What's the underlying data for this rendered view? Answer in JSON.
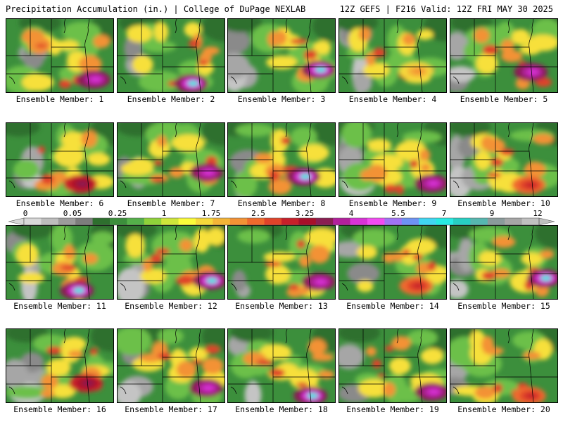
{
  "header": {
    "left": "Precipitation Accumulation (in.) | College of DuPage NEXLAB",
    "right": "12Z GEFS | F216 Valid: 12Z FRI MAY 30 2025"
  },
  "legend": {
    "ticks": [
      "0",
      "0.05",
      "0.25",
      "1",
      "1.75",
      "2.5",
      "3.25",
      "4",
      "5.5",
      "7",
      "9",
      "12"
    ],
    "colors": [
      "#d8d8d8",
      "#bdbdbd",
      "#9c9c9c",
      "#7d7d7d",
      "#2e6f2e",
      "#3c8f3c",
      "#55b04a",
      "#8fd23a",
      "#cfe63a",
      "#fbfb3a",
      "#f6d83a",
      "#f4b437",
      "#f39235",
      "#ef6a2d",
      "#e0432a",
      "#c7202a",
      "#a8102a",
      "#8a1e52",
      "#b2209c",
      "#d833d6",
      "#f24bf2",
      "#a073f4",
      "#6e92f4",
      "#40d6f2",
      "#27eae3",
      "#27cfc2",
      "#56b7b0",
      "#8a9b9b",
      "#a6a6a6",
      "#c0c0c0"
    ]
  },
  "members": [
    {
      "label": "Ensemble Member: 1",
      "peak": "magenta"
    },
    {
      "label": "Ensemble Member: 2",
      "peak": "cyan"
    },
    {
      "label": "Ensemble Member: 3",
      "peak": "cyan"
    },
    {
      "label": "Ensemble Member: 4",
      "peak": "orange"
    },
    {
      "label": "Ensemble Member: 5",
      "peak": "magenta"
    },
    {
      "label": "Ensemble Member: 6",
      "peak": "darkred"
    },
    {
      "label": "Ensemble Member: 7",
      "peak": "magenta"
    },
    {
      "label": "Ensemble Member: 8",
      "peak": "cyan"
    },
    {
      "label": "Ensemble Member: 9",
      "peak": "magenta"
    },
    {
      "label": "Ensemble Member: 10",
      "peak": "red"
    },
    {
      "label": "Ensemble Member: 11",
      "peak": "cyan"
    },
    {
      "label": "Ensemble Member: 12",
      "peak": "cyan"
    },
    {
      "label": "Ensemble Member: 13",
      "peak": "magenta"
    },
    {
      "label": "Ensemble Member: 14",
      "peak": "red"
    },
    {
      "label": "Ensemble Member: 15",
      "peak": "cyan"
    },
    {
      "label": "Ensemble Member: 16",
      "peak": "darkred"
    },
    {
      "label": "Ensemble Member: 17",
      "peak": "magenta"
    },
    {
      "label": "Ensemble Member: 18",
      "peak": "cyan"
    },
    {
      "label": "Ensemble Member: 19",
      "peak": "magenta"
    },
    {
      "label": "Ensemble Member: 20",
      "peak": "red"
    }
  ]
}
